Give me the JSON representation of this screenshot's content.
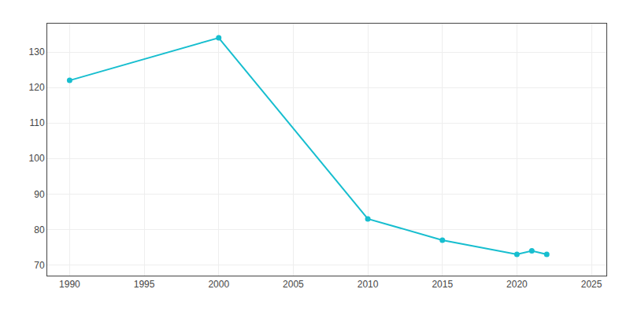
{
  "chart_data": {
    "type": "line",
    "x": [
      1990,
      2000,
      2010,
      2015,
      2020,
      2021,
      2022
    ],
    "values": [
      122,
      134,
      83,
      77,
      73,
      74,
      73
    ],
    "color": "#17becf",
    "marker": "circle",
    "xlim": [
      1988.5,
      2026
    ],
    "ylim": [
      67,
      138
    ],
    "xticks": [
      1990,
      1995,
      2000,
      2005,
      2010,
      2015,
      2020,
      2025
    ],
    "yticks": [
      70,
      80,
      90,
      100,
      110,
      120,
      130
    ],
    "grid": true
  }
}
